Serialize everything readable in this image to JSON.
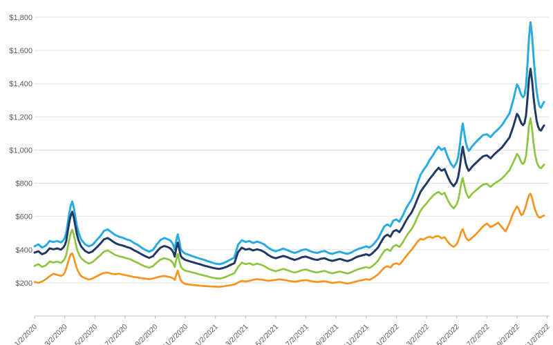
{
  "page": {
    "title": "",
    "background": "#ffffff"
  },
  "chart_data": {
    "type": "line",
    "title": "",
    "xlabel": "",
    "ylabel": "",
    "legend": "none",
    "grid": true,
    "y_tick_prefix": "$",
    "y_ticks": [
      200,
      400,
      600,
      800,
      1000,
      1200,
      1400,
      1600,
      1800
    ],
    "ylim": [
      0,
      1830
    ],
    "x_unit": "months since 2020-01-02, weekly data",
    "xlim_months": [
      0,
      34
    ],
    "x_tick_months": [
      0,
      2,
      4,
      6,
      8,
      10,
      12,
      14,
      16,
      18,
      20,
      22,
      24,
      26,
      28,
      30,
      32,
      34
    ],
    "x_tick_labels": [
      "1/2/2020",
      "3/2/2020",
      "5/2/2020",
      "7/2/2020",
      "9/2/2020",
      "11/2/2020",
      "1/2/2021",
      "3/2/2021",
      "5/2/2021",
      "7/2/2021",
      "9/2/2021",
      "11/2/2021",
      "1/2/2022",
      "3/2/2022",
      "5/2/2022",
      "7/2/2022",
      "9/2/2022",
      "11/2/2022"
    ],
    "axis_color": "#BFBFBF",
    "grid_color": "#E2E2E2",
    "label_color": "#595959",
    "x": [
      0,
      0.25,
      0.5,
      0.75,
      1,
      1.25,
      1.5,
      1.75,
      1.9,
      2,
      2.1,
      2.2,
      2.3,
      2.4,
      2.5,
      2.6,
      2.7,
      2.8,
      2.9,
      3,
      3.1,
      3.35,
      3.6,
      3.85,
      4.1,
      4.35,
      4.6,
      4.85,
      5.1,
      5.35,
      5.6,
      5.85,
      6.1,
      6.35,
      6.6,
      6.85,
      7.1,
      7.35,
      7.6,
      7.85,
      8.1,
      8.35,
      8.6,
      8.85,
      9,
      9.1,
      9.2,
      9.3,
      9.4,
      9.5,
      9.6,
      9.7,
      9.8,
      9.9,
      10,
      10.25,
      10.5,
      10.75,
      11,
      11.25,
      11.5,
      11.75,
      12,
      12.25,
      12.5,
      12.75,
      13,
      13.25,
      13.5,
      13.75,
      14,
      14.25,
      14.5,
      14.75,
      15,
      15.25,
      15.5,
      15.75,
      16,
      16.25,
      16.5,
      16.75,
      17,
      17.25,
      17.5,
      17.75,
      18,
      18.25,
      18.5,
      18.75,
      19,
      19.25,
      19.5,
      19.75,
      20,
      20.25,
      20.5,
      20.75,
      21,
      21.25,
      21.5,
      21.75,
      22,
      22.2,
      22.4,
      22.6,
      22.8,
      23,
      23.2,
      23.4,
      23.6,
      23.8,
      24,
      24.2,
      24.4,
      24.6,
      24.8,
      25,
      25.2,
      25.4,
      25.6,
      25.8,
      26,
      26.2,
      26.4,
      26.6,
      26.8,
      27,
      27.2,
      27.4,
      27.6,
      27.8,
      28,
      28.1,
      28.2,
      28.3,
      28.4,
      28.5,
      28.6,
      28.7,
      28.8,
      28.9,
      29,
      29.25,
      29.5,
      29.75,
      30,
      30.25,
      30.5,
      30.75,
      31,
      31.25,
      31.5,
      31.75,
      32,
      32.1,
      32.2,
      32.3,
      32.4,
      32.5,
      32.6,
      32.7,
      32.8,
      32.9,
      33,
      33.1,
      33.2,
      33.3,
      33.4,
      33.5,
      33.6,
      33.7,
      33.8
    ],
    "series": [
      {
        "name": "series-lightblue",
        "color": "#29ABE2",
        "width": 3,
        "values": [
          420,
          432,
          412,
          425,
          452,
          446,
          452,
          443,
          455,
          470,
          500,
          560,
          620,
          665,
          690,
          655,
          600,
          545,
          510,
          482,
          460,
          432,
          420,
          430,
          455,
          480,
          512,
          522,
          505,
          488,
          478,
          472,
          462,
          455,
          440,
          428,
          412,
          398,
          388,
          398,
          430,
          458,
          470,
          462,
          455,
          445,
          430,
          400,
          455,
          492,
          450,
          405,
          390,
          382,
          376,
          368,
          360,
          352,
          345,
          338,
          330,
          323,
          316,
          312,
          318,
          328,
          340,
          352,
          430,
          457,
          446,
          452,
          440,
          448,
          442,
          430,
          412,
          398,
          390,
          398,
          406,
          398,
          388,
          380,
          388,
          398,
          402,
          392,
          384,
          380,
          388,
          392,
          380,
          374,
          382,
          388,
          380,
          374,
          382,
          395,
          405,
          412,
          420,
          412,
          425,
          445,
          468,
          505,
          540,
          552,
          540,
          575,
          582,
          568,
          600,
          640,
          672,
          700,
          745,
          800,
          850,
          880,
          905,
          940,
          965,
          995,
          1020,
          1000,
          1012,
          960,
          920,
          896,
          925,
          960,
          1020,
          1100,
          1160,
          1105,
          1050,
          1015,
          995,
          1005,
          1020,
          1045,
          1068,
          1090,
          1095,
          1078,
          1105,
          1125,
          1150,
          1185,
          1220,
          1300,
          1395,
          1380,
          1355,
          1330,
          1318,
          1330,
          1390,
          1520,
          1680,
          1770,
          1690,
          1560,
          1450,
          1360,
          1300,
          1262,
          1255,
          1275,
          1290
        ]
      },
      {
        "name": "series-navy",
        "color": "#1F3864",
        "width": 3,
        "values": [
          382,
          390,
          372,
          382,
          408,
          402,
          408,
          400,
          412,
          425,
          452,
          510,
          565,
          605,
          628,
          595,
          545,
          495,
          462,
          438,
          418,
          392,
          380,
          390,
          412,
          435,
          462,
          470,
          455,
          440,
          430,
          425,
          416,
          410,
          396,
          385,
          372,
          360,
          350,
          360,
          388,
          412,
          422,
          415,
          408,
          398,
          385,
          358,
          408,
          442,
          402,
          362,
          350,
          344,
          338,
          331,
          324,
          317,
          311,
          304,
          298,
          292,
          287,
          284,
          289,
          297,
          308,
          318,
          385,
          412,
          400,
          405,
          395,
          402,
          396,
          385,
          368,
          355,
          348,
          355,
          362,
          355,
          346,
          338,
          345,
          355,
          358,
          350,
          342,
          338,
          345,
          348,
          338,
          332,
          338,
          344,
          337,
          331,
          338,
          350,
          360,
          366,
          372,
          365,
          377,
          395,
          415,
          448,
          478,
          490,
          478,
          510,
          518,
          505,
          532,
          568,
          598,
          622,
          660,
          705,
          748,
          775,
          798,
          825,
          848,
          872,
          893,
          875,
          886,
          840,
          805,
          782,
          808,
          838,
          890,
          962,
          1020,
          970,
          922,
          892,
          875,
          885,
          898,
          920,
          942,
          962,
          968,
          950,
          975,
          995,
          1015,
          1045,
          1075,
          1140,
          1218,
          1205,
          1182,
          1160,
          1150,
          1162,
          1210,
          1310,
          1430,
          1490,
          1420,
          1318,
          1240,
          1180,
          1142,
          1122,
          1118,
          1135,
          1148
        ]
      },
      {
        "name": "series-green",
        "color": "#8CC63F",
        "width": 2.7,
        "values": [
          302,
          312,
          296,
          305,
          328,
          322,
          328,
          320,
          332,
          345,
          368,
          415,
          462,
          498,
          520,
          492,
          448,
          408,
          382,
          362,
          348,
          328,
          316,
          325,
          345,
          365,
          388,
          395,
          382,
          368,
          360,
          355,
          348,
          342,
          330,
          320,
          308,
          298,
          291,
          300,
          322,
          340,
          348,
          342,
          336,
          328,
          318,
          295,
          340,
          374,
          332,
          298,
          286,
          279,
          273,
          268,
          262,
          256,
          250,
          244,
          238,
          232,
          228,
          225,
          230,
          238,
          248,
          258,
          295,
          322,
          312,
          318,
          308,
          315,
          310,
          300,
          286,
          276,
          270,
          277,
          284,
          277,
          268,
          262,
          268,
          277,
          280,
          273,
          266,
          262,
          268,
          272,
          263,
          257,
          263,
          268,
          262,
          256,
          263,
          274,
          283,
          289,
          295,
          289,
          300,
          316,
          335,
          365,
          392,
          403,
          392,
          420,
          428,
          416,
          440,
          472,
          500,
          522,
          556,
          596,
          634,
          658,
          678,
          702,
          722,
          738,
          748,
          732,
          742,
          700,
          668,
          648,
          672,
          698,
          742,
          800,
          832,
          790,
          752,
          728,
          712,
          722,
          735,
          755,
          775,
          792,
          796,
          778,
          798,
          812,
          828,
          852,
          878,
          925,
          977,
          965,
          945,
          925,
          916,
          928,
          965,
          1048,
          1150,
          1190,
          1128,
          1040,
          975,
          932,
          908,
          894,
          890,
          902,
          912
        ]
      },
      {
        "name": "series-orange",
        "color": "#F7941E",
        "width": 2.7,
        "values": [
          205,
          200,
          208,
          222,
          240,
          255,
          248,
          242,
          248,
          262,
          285,
          318,
          348,
          372,
          378,
          352,
          318,
          288,
          268,
          252,
          240,
          228,
          220,
          226,
          238,
          250,
          260,
          262,
          255,
          252,
          255,
          250,
          245,
          240,
          235,
          232,
          228,
          225,
          222,
          226,
          232,
          238,
          241,
          237,
          234,
          230,
          226,
          218,
          248,
          274,
          240,
          215,
          205,
          198,
          193,
          190,
          187,
          185,
          183,
          181,
          179,
          178,
          177,
          176,
          178,
          182,
          186,
          190,
          202,
          212,
          208,
          212,
          218,
          222,
          220,
          216,
          212,
          215,
          218,
          221,
          218,
          214,
          210,
          207,
          210,
          214,
          216,
          212,
          208,
          205,
          208,
          210,
          204,
          199,
          202,
          205,
          200,
          196,
          200,
          206,
          212,
          216,
          222,
          218,
          226,
          238,
          252,
          272,
          292,
          300,
          292,
          312,
          318,
          310,
          330,
          355,
          378,
          398,
          422,
          448,
          465,
          460,
          472,
          478,
          470,
          480,
          482,
          468,
          475,
          448,
          428,
          416,
          432,
          452,
          478,
          508,
          524,
          498,
          475,
          462,
          455,
          462,
          470,
          490,
          515,
          540,
          558,
          535,
          548,
          562,
          535,
          510,
          560,
          620,
          660,
          648,
          625,
          608,
          615,
          638,
          665,
          700,
          728,
          738,
          712,
          672,
          640,
          618,
          600,
          592,
          596,
          602,
          605
        ]
      }
    ]
  }
}
